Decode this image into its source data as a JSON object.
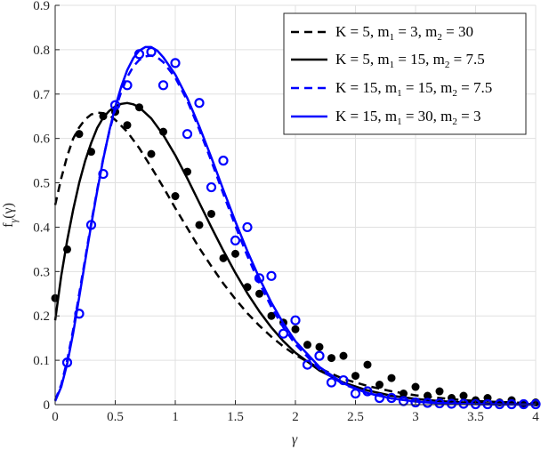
{
  "chart_data": {
    "type": "line",
    "title": "",
    "xlabel": "γ",
    "ylabel_main": "f",
    "ylabel_sub": "γ",
    "ylabel_arg": "(γ)",
    "xlim": [
      0,
      4
    ],
    "ylim": [
      0,
      0.9
    ],
    "xticks": [
      0,
      0.5,
      1,
      1.5,
      2,
      2.5,
      3,
      3.5,
      4
    ],
    "xtick_labels": [
      "0",
      "0.5",
      "1",
      "1.5",
      "2",
      "2.5",
      "3",
      "3.5",
      "4"
    ],
    "yticks": [
      0,
      0.1,
      0.2,
      0.3,
      0.4,
      0.5,
      0.6,
      0.7,
      0.8,
      0.9
    ],
    "ytick_labels": [
      "0",
      "0.1",
      "0.2",
      "0.3",
      "0.4",
      "0.5",
      "0.6",
      "0.7",
      "0.8",
      "0.9"
    ],
    "grid": true,
    "legend_position": "top-right",
    "colors": {
      "black": "#000000",
      "blue": "#0000ff",
      "grid": "#e0e0e0",
      "axis": "#262626"
    },
    "series": [
      {
        "legend": {
          "pre": "K = 5, m",
          "s1": "1",
          "mid": " = 3, m",
          "s2": "2",
          "post": " = 30"
        },
        "color": "#000000",
        "dash": true,
        "marker": "dot",
        "x": [
          0,
          0.05,
          0.1,
          0.15,
          0.2,
          0.25,
          0.3,
          0.35,
          0.4,
          0.45,
          0.5,
          0.6,
          0.7,
          0.8,
          0.9,
          1.0,
          1.1,
          1.2,
          1.3,
          1.4,
          1.5,
          1.6,
          1.7,
          1.8,
          1.9,
          2.0,
          2.2,
          2.4,
          2.6,
          2.8,
          3.0,
          3.2,
          3.4,
          3.6,
          3.8,
          4.0
        ],
        "y": [
          0.45,
          0.51,
          0.56,
          0.6,
          0.625,
          0.643,
          0.654,
          0.658,
          0.657,
          0.652,
          0.642,
          0.615,
          0.578,
          0.535,
          0.49,
          0.443,
          0.398,
          0.353,
          0.312,
          0.273,
          0.238,
          0.206,
          0.178,
          0.153,
          0.131,
          0.112,
          0.082,
          0.058,
          0.042,
          0.03,
          0.021,
          0.015,
          0.01,
          0.007,
          0.005,
          0.003
        ],
        "mx": [
          0.2,
          0.4,
          0.6,
          0.8,
          1.0,
          1.2,
          1.4,
          1.6,
          1.8,
          2.0,
          2.2,
          2.4,
          2.6,
          2.8,
          3.0,
          3.2,
          3.4,
          3.6,
          3.8,
          4.0
        ],
        "my": [
          0.61,
          0.65,
          0.63,
          0.565,
          0.47,
          0.405,
          0.33,
          0.265,
          0.2,
          0.17,
          0.13,
          0.11,
          0.09,
          0.06,
          0.04,
          0.03,
          0.02,
          0.015,
          0.01,
          0.005
        ]
      },
      {
        "legend": {
          "pre": "K = 5, m",
          "s1": "1",
          "mid": " = 15, m",
          "s2": "2",
          "post": " = 7.5"
        },
        "color": "#000000",
        "dash": false,
        "marker": "dot",
        "x": [
          0,
          0.05,
          0.1,
          0.15,
          0.2,
          0.25,
          0.3,
          0.35,
          0.4,
          0.45,
          0.5,
          0.55,
          0.6,
          0.65,
          0.7,
          0.8,
          0.9,
          1.0,
          1.1,
          1.2,
          1.3,
          1.4,
          1.5,
          1.6,
          1.7,
          1.8,
          1.9,
          2.0,
          2.2,
          2.4,
          2.6,
          2.8,
          3.0,
          3.2,
          3.4,
          3.6,
          3.8,
          4.0
        ],
        "y": [
          0.19,
          0.29,
          0.37,
          0.44,
          0.5,
          0.55,
          0.59,
          0.624,
          0.647,
          0.662,
          0.672,
          0.678,
          0.68,
          0.677,
          0.67,
          0.645,
          0.608,
          0.562,
          0.51,
          0.455,
          0.4,
          0.347,
          0.297,
          0.251,
          0.21,
          0.174,
          0.143,
          0.117,
          0.077,
          0.05,
          0.032,
          0.02,
          0.013,
          0.008,
          0.005,
          0.003,
          0.002,
          0.001
        ],
        "mx": [
          0.0,
          0.1,
          0.3,
          0.5,
          0.7,
          0.9,
          1.1,
          1.3,
          1.5,
          1.7,
          1.9,
          2.1,
          2.3,
          2.5,
          2.7,
          2.9,
          3.1,
          3.3,
          3.5,
          3.7,
          3.9
        ],
        "my": [
          0.24,
          0.35,
          0.57,
          0.66,
          0.67,
          0.615,
          0.525,
          0.43,
          0.34,
          0.25,
          0.185,
          0.135,
          0.105,
          0.065,
          0.045,
          0.025,
          0.02,
          0.015,
          0.01,
          0.005,
          0.003
        ]
      },
      {
        "legend": {
          "pre": "K = 15, m",
          "s1": "1",
          "mid": " = 15, m",
          "s2": "2",
          "post": " = 7.5"
        },
        "color": "#0000ff",
        "dash": true,
        "marker": "circle",
        "x": [
          0,
          0.05,
          0.1,
          0.15,
          0.2,
          0.25,
          0.3,
          0.35,
          0.4,
          0.45,
          0.5,
          0.55,
          0.6,
          0.65,
          0.7,
          0.75,
          0.8,
          0.85,
          0.9,
          1.0,
          1.1,
          1.2,
          1.3,
          1.4,
          1.5,
          1.6,
          1.7,
          1.8,
          1.9,
          2.0,
          2.2,
          2.4,
          2.6,
          2.8,
          3.0,
          3.2,
          3.4,
          3.6,
          3.8,
          4.0
        ],
        "y": [
          0.01,
          0.045,
          0.1,
          0.17,
          0.25,
          0.33,
          0.41,
          0.485,
          0.555,
          0.615,
          0.665,
          0.705,
          0.738,
          0.762,
          0.777,
          0.785,
          0.787,
          0.783,
          0.772,
          0.737,
          0.685,
          0.62,
          0.549,
          0.475,
          0.403,
          0.335,
          0.274,
          0.22,
          0.174,
          0.136,
          0.08,
          0.046,
          0.026,
          0.014,
          0.008,
          0.004,
          0.002,
          0.001,
          0.0005,
          0.0002
        ],
        "mx": [
          0.1,
          0.3,
          0.5,
          0.7,
          0.9,
          1.1,
          1.3,
          1.5,
          1.7,
          1.9,
          2.1,
          2.3,
          2.5,
          2.7,
          2.9,
          3.1,
          3.3,
          3.5,
          3.7,
          3.9
        ],
        "my": [
          0.095,
          0.405,
          0.675,
          0.79,
          0.72,
          0.61,
          0.49,
          0.37,
          0.285,
          0.16,
          0.09,
          0.05,
          0.025,
          0.015,
          0.008,
          0.004,
          0.002,
          0.001,
          0.001,
          0.001
        ]
      },
      {
        "legend": {
          "pre": "K = 15, m",
          "s1": "1",
          "mid": " = 30, m",
          "s2": "2",
          "post": " = 3"
        },
        "color": "#0000ff",
        "dash": false,
        "marker": "circle",
        "x": [
          0,
          0.05,
          0.1,
          0.15,
          0.2,
          0.25,
          0.3,
          0.35,
          0.4,
          0.45,
          0.5,
          0.55,
          0.6,
          0.65,
          0.7,
          0.75,
          0.8,
          0.85,
          0.9,
          1.0,
          1.1,
          1.2,
          1.3,
          1.4,
          1.5,
          1.6,
          1.7,
          1.8,
          1.9,
          2.0,
          2.2,
          2.4,
          2.6,
          2.8,
          3.0,
          3.2,
          3.4,
          3.6,
          3.8,
          4.0
        ],
        "y": [
          0.008,
          0.04,
          0.092,
          0.162,
          0.242,
          0.325,
          0.405,
          0.482,
          0.553,
          0.617,
          0.671,
          0.717,
          0.754,
          0.781,
          0.798,
          0.806,
          0.806,
          0.798,
          0.783,
          0.744,
          0.691,
          0.627,
          0.557,
          0.484,
          0.413,
          0.346,
          0.285,
          0.23,
          0.183,
          0.143,
          0.085,
          0.048,
          0.026,
          0.014,
          0.007,
          0.003,
          0.0015,
          0.0007,
          0.0003,
          0.0001
        ],
        "mx": [
          0.2,
          0.4,
          0.6,
          0.8,
          1.0,
          1.2,
          1.4,
          1.6,
          1.8,
          2.0,
          2.2,
          2.4,
          2.6,
          2.8,
          3.0,
          3.2,
          3.4,
          3.6,
          3.8,
          4.0
        ],
        "my": [
          0.205,
          0.52,
          0.72,
          0.795,
          0.77,
          0.68,
          0.55,
          0.4,
          0.29,
          0.19,
          0.11,
          0.055,
          0.03,
          0.015,
          0.005,
          0.003,
          0.002,
          0.001,
          0.001,
          0.001
        ]
      }
    ]
  }
}
